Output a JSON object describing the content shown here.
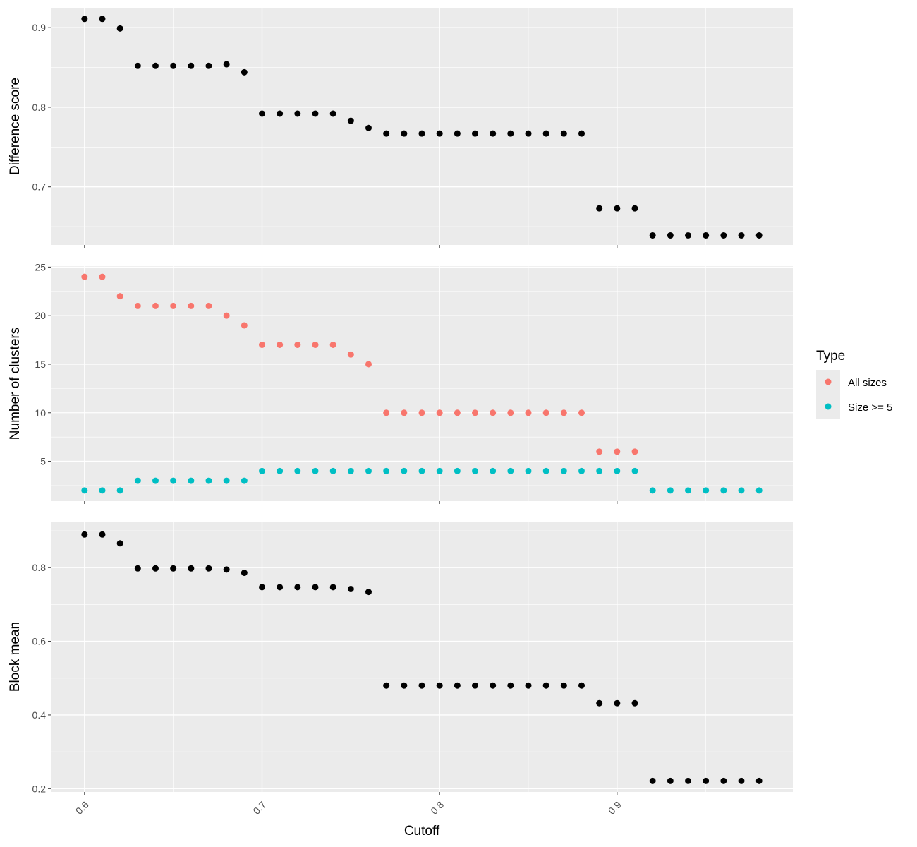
{
  "chart_data": {
    "type": "scatter",
    "x": [
      0.6,
      0.61,
      0.62,
      0.63,
      0.64,
      0.65,
      0.66,
      0.67,
      0.68,
      0.69,
      0.7,
      0.71,
      0.72,
      0.73,
      0.74,
      0.75,
      0.76,
      0.77,
      0.78,
      0.79,
      0.8,
      0.81,
      0.82,
      0.83,
      0.84,
      0.85,
      0.86,
      0.87,
      0.88,
      0.89,
      0.9,
      0.91,
      0.92,
      0.93,
      0.94,
      0.95,
      0.96,
      0.97,
      0.98
    ],
    "xlabel": "Cutoff",
    "xlim": [
      0.581,
      0.999
    ],
    "xticks": [
      0.6,
      0.7,
      0.8,
      0.9
    ],
    "xtick_labels": [
      "0.6",
      "0.7",
      "0.8",
      "0.9"
    ],
    "grid": true,
    "background": "#ebebeb",
    "panels": [
      {
        "name": "difference",
        "ylabel": "Difference score",
        "ylim": [
          0.627,
          0.925
        ],
        "yticks": [
          0.7,
          0.8,
          0.9
        ],
        "ytick_labels": [
          "0.7",
          "0.8",
          "0.9"
        ],
        "series": [
          {
            "color": "#000000",
            "values": [
              0.911,
              0.911,
              0.899,
              0.852,
              0.852,
              0.852,
              0.852,
              0.852,
              0.854,
              0.844,
              0.792,
              0.792,
              0.792,
              0.792,
              0.792,
              0.783,
              0.774,
              0.767,
              0.767,
              0.767,
              0.767,
              0.767,
              0.767,
              0.767,
              0.767,
              0.767,
              0.767,
              0.767,
              0.767,
              0.673,
              0.673,
              0.673,
              0.639,
              0.639,
              0.639,
              0.639,
              0.639,
              0.639,
              0.639
            ]
          }
        ]
      },
      {
        "name": "clusters",
        "ylabel": "Number of clusters",
        "ylim": [
          0.9,
          25.1
        ],
        "yticks": [
          5,
          10,
          15,
          20,
          25
        ],
        "ytick_labels": [
          "5",
          "10",
          "15",
          "20",
          "25"
        ],
        "series": [
          {
            "name": "All sizes",
            "color": "#f8766d",
            "values": [
              24,
              24,
              22,
              21,
              21,
              21,
              21,
              21,
              20,
              19,
              17,
              17,
              17,
              17,
              17,
              16,
              15,
              10,
              10,
              10,
              10,
              10,
              10,
              10,
              10,
              10,
              10,
              10,
              10,
              6,
              6,
              6,
              null,
              null,
              null,
              null,
              null,
              null,
              null
            ]
          },
          {
            "name": "Size >= 5",
            "color": "#00bfc4",
            "values": [
              2,
              2,
              2,
              3,
              3,
              3,
              3,
              3,
              3,
              3,
              4,
              4,
              4,
              4,
              4,
              4,
              4,
              4,
              4,
              4,
              4,
              4,
              4,
              4,
              4,
              4,
              4,
              4,
              4,
              4,
              4,
              4,
              2,
              2,
              2,
              2,
              2,
              2,
              2
            ]
          }
        ]
      },
      {
        "name": "block",
        "ylabel": "Block mean",
        "ylim": [
          0.191,
          0.925
        ],
        "yticks": [
          0.2,
          0.4,
          0.6,
          0.8
        ],
        "ytick_labels": [
          "0.2",
          "0.4",
          "0.6",
          "0.8"
        ],
        "series": [
          {
            "color": "#000000",
            "values": [
              0.89,
              0.89,
              0.866,
              0.798,
              0.798,
              0.798,
              0.798,
              0.798,
              0.795,
              0.786,
              0.747,
              0.747,
              0.747,
              0.747,
              0.747,
              0.742,
              0.734,
              0.48,
              0.48,
              0.48,
              0.48,
              0.48,
              0.48,
              0.48,
              0.48,
              0.48,
              0.48,
              0.48,
              0.48,
              0.432,
              0.432,
              0.432,
              0.221,
              0.221,
              0.221,
              0.221,
              0.221,
              0.221,
              0.221
            ]
          }
        ]
      }
    ],
    "legend": {
      "title": "Type",
      "position": "right",
      "entries": [
        {
          "label": "All sizes",
          "color": "#f8766d"
        },
        {
          "label": "Size >= 5",
          "color": "#00bfc4"
        }
      ]
    }
  }
}
